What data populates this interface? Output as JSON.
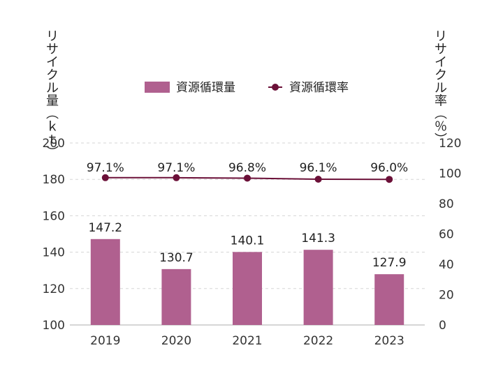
{
  "chart_data": {
    "type": "bar",
    "categories": [
      "2019",
      "2020",
      "2021",
      "2022",
      "2023"
    ],
    "series": [
      {
        "name": "資源循環量",
        "type": "bar",
        "axis": "left",
        "color": "#b0608f",
        "values": [
          147.2,
          130.7,
          140.1,
          141.3,
          127.9
        ],
        "labels": [
          "147.2",
          "130.7",
          "140.1",
          "141.3",
          "127.9"
        ]
      },
      {
        "name": "資源循環率",
        "type": "line",
        "axis": "right",
        "color": "#6b1038",
        "values": [
          97.1,
          97.1,
          96.8,
          96.1,
          96.0
        ],
        "labels": [
          "97.1%",
          "97.1%",
          "96.8%",
          "96.1%",
          "96.0%"
        ]
      }
    ],
    "y_left": {
      "label": "リサイクル量（ｋｔ）",
      "ylim": [
        100,
        200
      ],
      "ticks": [
        "100",
        "120",
        "140",
        "160",
        "180",
        "200"
      ]
    },
    "y_right": {
      "label": "リサイクル率（％）",
      "ylim": [
        0,
        120
      ],
      "ticks": [
        "0",
        "20",
        "40",
        "60",
        "80",
        "100",
        "120"
      ]
    },
    "grid": true,
    "legend": "top-center"
  }
}
